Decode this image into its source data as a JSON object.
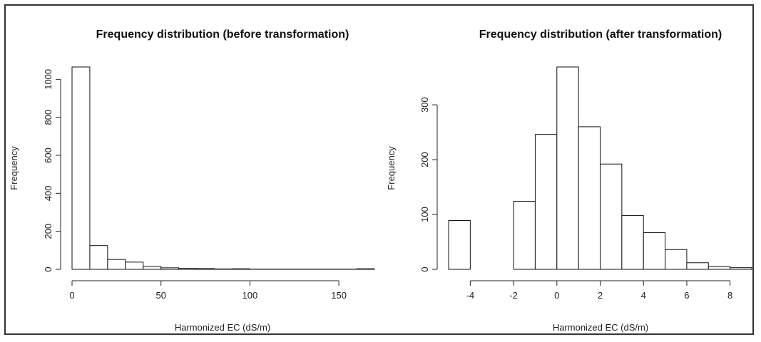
{
  "chart_data": [
    {
      "type": "bar",
      "title": "Frequency distribution (before transformation)",
      "xlabel": "Harmonized EC (dS/m)",
      "ylabel": "Frequency",
      "bin_edges": [
        0,
        10,
        20,
        30,
        40,
        50,
        60,
        70,
        80,
        90,
        100,
        110,
        120,
        130,
        140,
        150,
        160,
        170
      ],
      "values": [
        1065,
        125,
        52,
        38,
        15,
        8,
        5,
        4,
        2,
        3,
        1,
        1,
        1,
        1,
        1,
        1,
        3
      ],
      "xlim": [
        0,
        170
      ],
      "ylim": [
        0,
        1065
      ],
      "xticks": [
        0,
        50,
        100,
        150
      ],
      "yticks": [
        0,
        200,
        400,
        600,
        800,
        1000
      ],
      "grid": false
    },
    {
      "type": "bar",
      "title": "Frequency distribution (after transformation)",
      "xlabel": "Harmonized EC (dS/m)",
      "ylabel": "Frequency",
      "bin_edges": [
        -5,
        -4,
        -3,
        -2,
        -1,
        0,
        1,
        2,
        3,
        4,
        5,
        6,
        7,
        8,
        9
      ],
      "values": [
        89,
        0,
        0,
        124,
        246,
        369,
        260,
        192,
        98,
        67,
        36,
        12,
        5,
        3
      ],
      "xlim": [
        -5,
        9
      ],
      "ylim": [
        0,
        369
      ],
      "xticks": [
        -4,
        -2,
        0,
        2,
        4,
        6,
        8
      ],
      "yticks": [
        0,
        100,
        200,
        300
      ],
      "grid": false
    }
  ]
}
